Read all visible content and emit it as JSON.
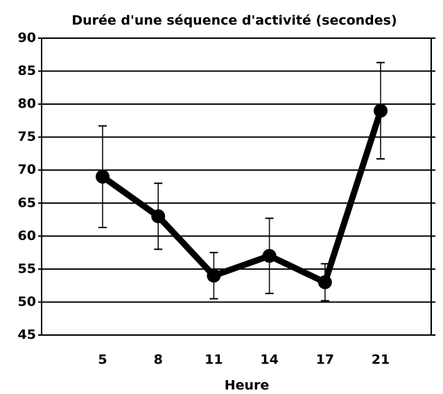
{
  "chart_data": {
    "type": "line",
    "title": "Durée d'une séquence d'activité (secondes)",
    "x_label": "Heure",
    "categories": [
      "5",
      "8",
      "11",
      "14",
      "17",
      "21"
    ],
    "values": [
      69,
      63,
      54,
      57,
      53,
      79
    ],
    "errors": [
      7.7,
      5,
      3.5,
      5.7,
      2.8,
      7.3
    ],
    "color": "#000000",
    "ylim": [
      45,
      90
    ],
    "yticks": [
      45,
      50,
      55,
      60,
      65,
      70,
      75,
      80,
      85,
      90
    ],
    "grid": true
  }
}
